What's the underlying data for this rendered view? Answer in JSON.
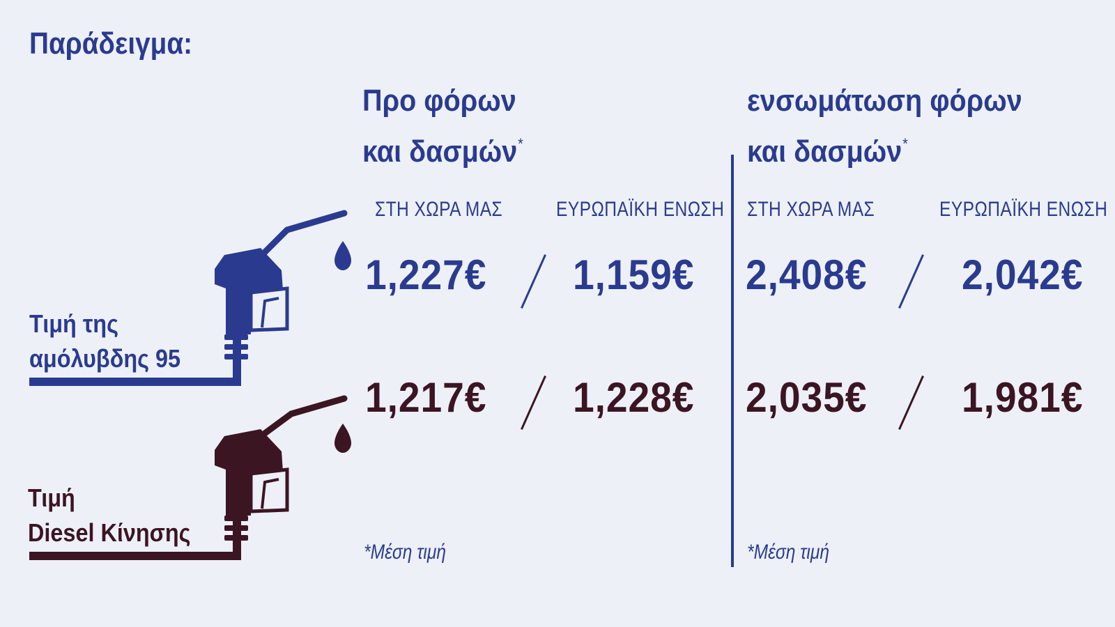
{
  "title": "Παράδειγμα:",
  "columns": [
    {
      "heading_line1": "Προ φόρων",
      "heading_line2": "και δασμών",
      "asterisk": "*",
      "sub_left": "ΣΤΗ ΧΩΡΑ ΜΑΣ",
      "sub_right": "ΕΥΡΩΠΑΪΚΗ ΕΝΩΣΗ",
      "note": "*Μέση τιμή"
    },
    {
      "heading_line1": "ενσωμάτωση φόρων",
      "heading_line2": "και δασμών",
      "asterisk": "*",
      "sub_left": "ΣΤΗ ΧΩΡΑ ΜΑΣ",
      "sub_right": "ΕΥΡΩΠΑΪΚΗ ΕΝΩΣΗ",
      "note": "*Μέση τιμή"
    }
  ],
  "fuels": [
    {
      "label_line1": "Τιμή της",
      "label_line2": "αμόλυβδης 95",
      "icon": "fuel-pump-icon",
      "color": "#2a3b8f",
      "prices": [
        "1,227€",
        "1,159€",
        "2,408€",
        "2,042€"
      ]
    },
    {
      "label_line1": "Τιμή",
      "label_line2": "Diesel Κίνησης",
      "icon": "fuel-pump-icon",
      "color": "#3c1522",
      "prices": [
        "1,217€",
        "1,228€",
        "2,035€",
        "1,981€"
      ]
    }
  ],
  "colors": {
    "background": "#edf0f7",
    "blue": "#2a3b8f",
    "maroon": "#3c1522"
  }
}
